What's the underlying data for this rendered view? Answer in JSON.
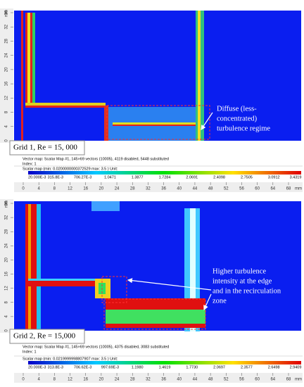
{
  "panels": [
    {
      "label": "Grid 1, Re = 15, 000",
      "annotation": [
        "Diffuse (less-",
        "concentrated)",
        "turbulence regime"
      ],
      "status": [
        "Vector map: Scalar Map #1, 145×69 vectors (10005), 4119 disabled, 5448 substituted",
        "Index: 1"
      ],
      "scalar_caption": "Scalar map (min: 0.0200000000372529 max: 3.5 ) Unit:",
      "colorbar_labels": [
        "20.000E-3",
        "315.8E-3",
        "706.27E-3",
        "1.0471",
        "1.3877",
        "1.7284",
        "2.0691",
        "2.4098",
        "2.7505",
        "3.0912",
        "3.4319"
      ],
      "x_ticks": [
        "0",
        "4",
        "8",
        "12",
        "16",
        "20",
        "24",
        "28",
        "32",
        "36",
        "40",
        "44",
        "48",
        "52",
        "56",
        "60",
        "64",
        "68"
      ],
      "x_unit": "mm",
      "y_ticks": [
        "0",
        "4",
        "8",
        "12",
        "16",
        "20",
        "24",
        "28",
        "32",
        "36"
      ],
      "y_unit": "mm"
    },
    {
      "label": "Grid 2, Re = 15,000",
      "annotation": [
        "Higher turbulence",
        "intensity at the edge",
        "and in the recirculation",
        "zone"
      ],
      "status": [
        "Vector map: Scalar Map #1, 145×69 vectors (10005), 4375 disabled, 3083 substituted",
        "Index: 1"
      ],
      "scalar_caption": "Scalar map (min: 0.0219999998807907 max: 3.5 ) Unit:",
      "colorbar_labels": [
        "20.000E-3",
        "313.8E-3",
        "706.62E-3",
        "997.69E-3",
        "1.1980",
        "1.4619",
        "1.7730",
        "2.0697",
        "2.3577",
        "2.6498",
        "2.9409"
      ],
      "x_ticks": [
        "0",
        "4",
        "8",
        "12",
        "16",
        "20",
        "24",
        "28",
        "32",
        "36",
        "40",
        "44",
        "48",
        "52",
        "56",
        "60",
        "64",
        "68"
      ],
      "x_unit": "mm",
      "y_ticks": [
        "0",
        "4",
        "8",
        "12",
        "16",
        "20",
        "24",
        "28",
        "32",
        "36"
      ],
      "y_unit": "mm"
    }
  ]
}
